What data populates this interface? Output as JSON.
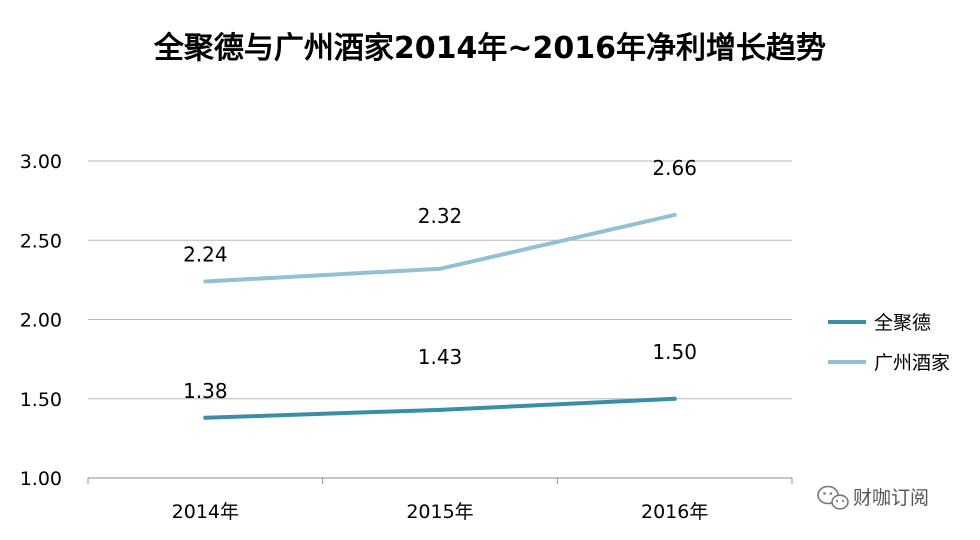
{
  "chart_data": {
    "type": "line",
    "title": "全聚德与广州酒家2014年~2016年净利增长趋势",
    "categories": [
      "2014年",
      "2015年",
      "2016年"
    ],
    "ylim": [
      1.0,
      3.0
    ],
    "yticks": [
      "1.00",
      "1.50",
      "2.00",
      "2.50",
      "3.00"
    ],
    "grid": true,
    "legend_position": "right",
    "series": [
      {
        "name": "全聚德",
        "values": [
          1.38,
          1.43,
          1.5
        ],
        "labels": [
          "1.38",
          "1.43",
          "1.50"
        ],
        "color": "#3b8ea5"
      },
      {
        "name": "广州酒家",
        "values": [
          2.24,
          2.32,
          2.66
        ],
        "labels": [
          "2.24",
          "2.32",
          "2.66"
        ],
        "color": "#93c1d1"
      }
    ]
  },
  "watermark": {
    "text": "财咖订阅",
    "icon": "wechat-icon"
  }
}
